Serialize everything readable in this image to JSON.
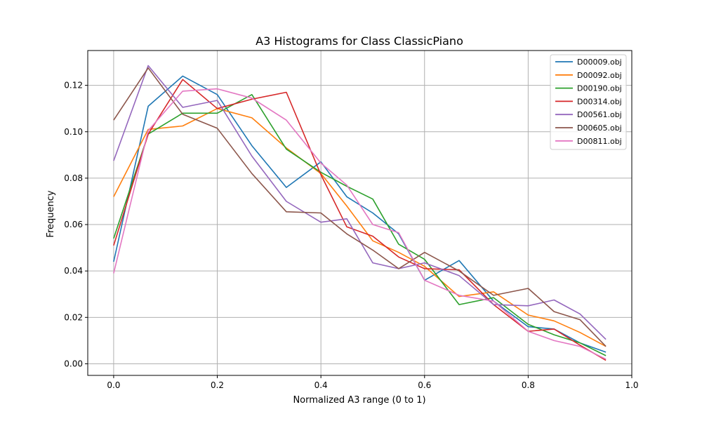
{
  "chart_data": {
    "type": "line",
    "title": "A3 Histograms for Class ClassicPiano",
    "xlabel": "Normalized A3 range (0 to 1)",
    "ylabel": "Frequency",
    "xlim": [
      -0.05,
      1.0
    ],
    "ylim": [
      -0.005,
      0.135
    ],
    "xticks": [
      0.0,
      0.2,
      0.4,
      0.6,
      0.8,
      1.0
    ],
    "xtick_labels": [
      "0.0",
      "0.2",
      "0.4",
      "0.6",
      "0.8",
      "1.0"
    ],
    "yticks": [
      0.0,
      0.02,
      0.04,
      0.06,
      0.08,
      0.1,
      0.12
    ],
    "ytick_labels": [
      "0.00",
      "0.02",
      "0.04",
      "0.06",
      "0.08",
      "0.10",
      "0.12"
    ],
    "grid": true,
    "legend_position": "top-right",
    "x": [
      0.0,
      0.0667,
      0.1333,
      0.2,
      0.2667,
      0.3333,
      0.4,
      0.45,
      0.5,
      0.55,
      0.6,
      0.6667,
      0.7333,
      0.8,
      0.85,
      0.9,
      0.95
    ],
    "series": [
      {
        "name": "D00009.obj",
        "color": "#1f77b4",
        "values": [
          0.044,
          0.111,
          0.124,
          0.116,
          0.094,
          0.076,
          0.087,
          0.072,
          0.065,
          0.056,
          0.036,
          0.0445,
          0.027,
          0.016,
          0.015,
          0.009,
          0.005
        ]
      },
      {
        "name": "D00092.obj",
        "color": "#ff7f0e",
        "values": [
          0.072,
          0.101,
          0.1025,
          0.11,
          0.106,
          0.093,
          0.082,
          0.068,
          0.053,
          0.048,
          0.042,
          0.029,
          0.031,
          0.021,
          0.0185,
          0.0135,
          0.0075
        ]
      },
      {
        "name": "D00190.obj",
        "color": "#2ca02c",
        "values": [
          0.054,
          0.099,
          0.108,
          0.108,
          0.116,
          0.0925,
          0.0825,
          0.0765,
          0.071,
          0.0515,
          0.045,
          0.0255,
          0.0285,
          0.017,
          0.0125,
          0.009,
          0.0035
        ]
      },
      {
        "name": "D00314.obj",
        "color": "#d62728",
        "values": [
          0.051,
          0.099,
          0.1225,
          0.11,
          0.114,
          0.117,
          0.0815,
          0.059,
          0.055,
          0.046,
          0.041,
          0.0405,
          0.0255,
          0.014,
          0.015,
          0.008,
          0.0015
        ]
      },
      {
        "name": "D00561.obj",
        "color": "#9467bd",
        "values": [
          0.0875,
          0.1285,
          0.1105,
          0.1135,
          0.0895,
          0.07,
          0.061,
          0.0625,
          0.0435,
          0.041,
          0.0435,
          0.038,
          0.0255,
          0.025,
          0.0275,
          0.0215,
          0.0105
        ]
      },
      {
        "name": "D00605.obj",
        "color": "#8c564b",
        "values": [
          0.105,
          0.1275,
          0.1075,
          0.1015,
          0.082,
          0.0655,
          0.065,
          0.056,
          0.049,
          0.041,
          0.048,
          0.04,
          0.0295,
          0.0325,
          0.0225,
          0.019,
          0.0075
        ]
      },
      {
        "name": "D00811.obj",
        "color": "#e377c2",
        "values": [
          0.039,
          0.1005,
          0.1175,
          0.1185,
          0.1145,
          0.105,
          0.0865,
          0.077,
          0.06,
          0.0565,
          0.036,
          0.0295,
          0.027,
          0.014,
          0.01,
          0.0075,
          0.002
        ]
      }
    ]
  }
}
